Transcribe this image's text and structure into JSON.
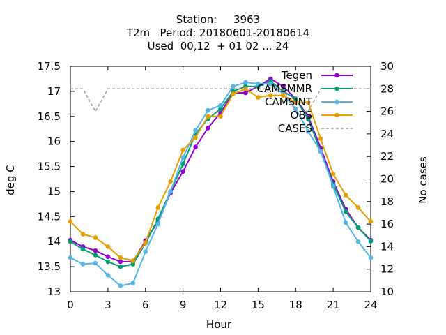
{
  "chart_data": {
    "type": "line",
    "title_lines": [
      "Station:     3963",
      "T2m   Period: 20180601-20180614",
      "Used  00,12  + 01 02 ... 24"
    ],
    "xlabel": "Hour",
    "ylabel": "deg C",
    "y2label": "No cases",
    "xlim": [
      0,
      24
    ],
    "ylim": [
      13,
      17.5
    ],
    "y2lim": [
      10,
      30
    ],
    "xticks": [
      "0",
      "3",
      "6",
      "9",
      "12",
      "15",
      "18",
      "21",
      "24"
    ],
    "yticks": [
      "13",
      "13.5",
      "14",
      "14.5",
      "15",
      "15.5",
      "16",
      "16.5",
      "17",
      "17.5"
    ],
    "y2ticks": [
      "10",
      "12",
      "14",
      "16",
      "18",
      "20",
      "22",
      "24",
      "26",
      "28",
      "30"
    ],
    "x": [
      0,
      1,
      2,
      3,
      4,
      5,
      6,
      7,
      8,
      9,
      10,
      11,
      12,
      13,
      14,
      15,
      16,
      17,
      18,
      19,
      20,
      21,
      22,
      23,
      24
    ],
    "series": [
      {
        "name": "Tegen",
        "color": "#9400d3",
        "axis": "y",
        "values": [
          14.03,
          13.9,
          13.82,
          13.7,
          13.6,
          13.6,
          14.02,
          14.4,
          14.97,
          15.4,
          15.89,
          16.27,
          16.57,
          16.97,
          16.97,
          17.1,
          17.25,
          17.1,
          16.85,
          16.5,
          15.87,
          15.2,
          14.65,
          14.28,
          14.03
        ]
      },
      {
        "name": "CAMSMMR",
        "color": "#009e73",
        "axis": "y",
        "values": [
          14.0,
          13.85,
          13.73,
          13.6,
          13.5,
          13.55,
          13.97,
          14.45,
          15.0,
          15.55,
          16.15,
          16.45,
          16.65,
          17.0,
          17.1,
          17.1,
          17.2,
          17.0,
          16.85,
          16.45,
          15.8,
          15.15,
          14.6,
          14.28,
          14.01
        ]
      },
      {
        "name": "CAMSINT",
        "color": "#56b4e9",
        "axis": "y",
        "values": [
          13.68,
          13.55,
          13.57,
          13.33,
          13.12,
          13.17,
          13.8,
          14.35,
          15.0,
          15.68,
          16.22,
          16.62,
          16.72,
          17.1,
          17.18,
          17.15,
          17.15,
          16.95,
          16.65,
          16.2,
          15.8,
          15.1,
          14.38,
          14.0,
          13.68
        ]
      },
      {
        "name": "OBS",
        "color": "#e69f00",
        "axis": "y",
        "values": [
          14.4,
          14.15,
          14.08,
          13.9,
          13.68,
          13.62,
          13.98,
          14.68,
          15.2,
          15.83,
          16.08,
          16.5,
          16.5,
          16.95,
          17.05,
          16.88,
          16.92,
          16.92,
          16.78,
          16.78,
          16.05,
          15.35,
          14.93,
          14.68,
          14.4
        ]
      },
      {
        "name": "CASES",
        "color": "#999999",
        "axis": "y2",
        "dashed": true,
        "values": [
          28,
          28,
          26,
          28,
          28,
          28,
          28,
          28,
          28,
          28,
          28,
          28,
          28,
          28,
          28,
          28,
          28,
          28,
          26,
          26,
          28,
          28,
          28,
          28,
          28
        ]
      }
    ],
    "legend_position": "top-right",
    "grid": false
  }
}
